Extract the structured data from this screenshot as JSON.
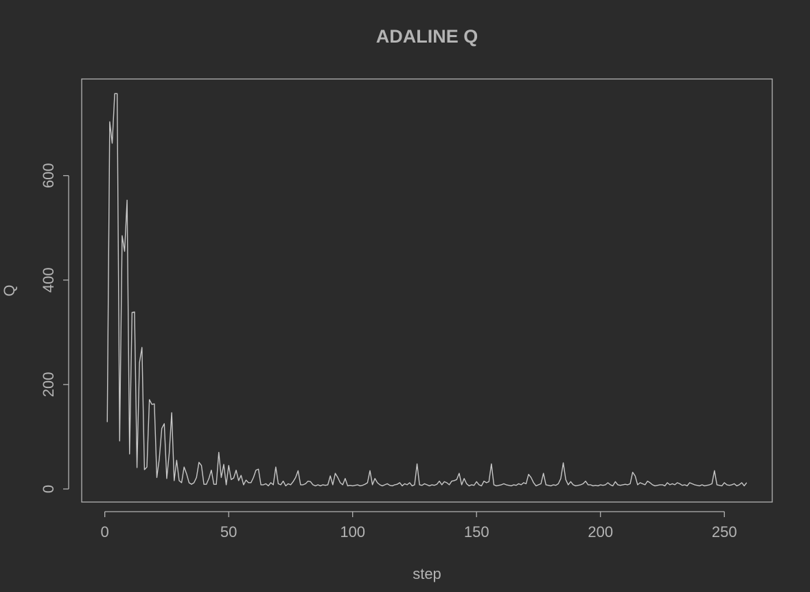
{
  "chart_data": {
    "type": "line",
    "title": "ADALINE Q",
    "xlabel": "step",
    "ylabel": "Q",
    "color": "#c8c8c8",
    "x": [
      1,
      2,
      3,
      4,
      5,
      6,
      7,
      8,
      9,
      10,
      11,
      12,
      13,
      14,
      15,
      16,
      17,
      18,
      19,
      20,
      21,
      22,
      23,
      24,
      25,
      26,
      27,
      28,
      29,
      30,
      31,
      32,
      33,
      34,
      35,
      36,
      37,
      38,
      39,
      40,
      41,
      42,
      43,
      44,
      45,
      46,
      47,
      48,
      49,
      50,
      51,
      52,
      53,
      54,
      55,
      56,
      57,
      58,
      59,
      60,
      61,
      62,
      63,
      64,
      65,
      66,
      67,
      68,
      69,
      70,
      71,
      72,
      73,
      74,
      75,
      76,
      77,
      78,
      79,
      80,
      81,
      82,
      83,
      84,
      85,
      86,
      87,
      88,
      89,
      90,
      91,
      92,
      93,
      94,
      95,
      96,
      97,
      98,
      99,
      100,
      101,
      102,
      103,
      104,
      105,
      106,
      107,
      108,
      109,
      110,
      111,
      112,
      113,
      114,
      115,
      116,
      117,
      118,
      119,
      120,
      121,
      122,
      123,
      124,
      125,
      126,
      127,
      128,
      129,
      130,
      131,
      132,
      133,
      134,
      135,
      136,
      137,
      138,
      139,
      140,
      141,
      142,
      143,
      144,
      145,
      146,
      147,
      148,
      149,
      150,
      151,
      152,
      153,
      154,
      155,
      156,
      157,
      158,
      159,
      160,
      161,
      162,
      163,
      164,
      165,
      166,
      167,
      168,
      169,
      170,
      171,
      172,
      173,
      174,
      175,
      176,
      177,
      178,
      179,
      180,
      181,
      182,
      183,
      184,
      185,
      186,
      187,
      188,
      189,
      190,
      191,
      192,
      193,
      194,
      195,
      196,
      197,
      198,
      199,
      200,
      201,
      202,
      203,
      204,
      205,
      206,
      207,
      208,
      209,
      210,
      211,
      212,
      213,
      214,
      215,
      216,
      217,
      218,
      219,
      220,
      221,
      222,
      223,
      224,
      225,
      226,
      227,
      228,
      229,
      230,
      231,
      232,
      233,
      234,
      235,
      236,
      237,
      238,
      239,
      240,
      241,
      242,
      243,
      244,
      245,
      246,
      247,
      248,
      249,
      250,
      251,
      252,
      253,
      254,
      255,
      256,
      257,
      258,
      259
    ],
    "values": [
      128,
      703,
      662,
      757,
      757,
      92,
      485,
      455,
      553,
      67,
      338,
      339,
      41,
      242,
      271,
      37,
      42,
      171,
      162,
      163,
      22,
      58,
      116,
      125,
      20,
      68,
      146,
      16,
      55,
      16,
      12,
      42,
      29,
      12,
      9,
      12,
      22,
      51,
      45,
      9,
      9,
      20,
      36,
      9,
      9,
      70,
      22,
      47,
      8,
      45,
      18,
      21,
      36,
      16,
      26,
      8,
      17,
      12,
      12,
      22,
      36,
      38,
      8,
      8,
      10,
      6,
      12,
      8,
      42,
      10,
      8,
      15,
      6,
      10,
      8,
      14,
      22,
      35,
      8,
      8,
      10,
      15,
      14,
      8,
      6,
      8,
      6,
      8,
      7,
      8,
      25,
      8,
      30,
      22,
      12,
      8,
      20,
      6,
      7,
      6,
      7,
      8,
      6,
      7,
      9,
      12,
      35,
      8,
      20,
      12,
      8,
      6,
      8,
      10,
      7,
      6,
      8,
      9,
      12,
      6,
      10,
      8,
      12,
      6,
      8,
      48,
      8,
      7,
      10,
      8,
      6,
      8,
      7,
      9,
      15,
      8,
      14,
      12,
      8,
      15,
      16,
      18,
      30,
      8,
      20,
      10,
      6,
      8,
      7,
      14,
      8,
      6,
      15,
      12,
      14,
      48,
      8,
      6,
      7,
      8,
      10,
      8,
      7,
      6,
      8,
      7,
      10,
      8,
      12,
      10,
      28,
      22,
      12,
      6,
      8,
      10,
      30,
      8,
      7,
      6,
      8,
      7,
      10,
      20,
      50,
      18,
      8,
      14,
      8,
      6,
      7,
      8,
      10,
      15,
      8,
      8,
      6,
      7,
      6,
      8,
      7,
      8,
      12,
      8,
      6,
      14,
      8,
      7,
      8,
      9,
      8,
      10,
      32,
      25,
      8,
      12,
      10,
      8,
      15,
      12,
      8,
      6,
      7,
      8,
      8,
      6,
      12,
      8,
      10,
      8,
      12,
      10,
      7,
      8,
      6,
      12,
      10,
      8,
      7,
      6,
      8,
      6,
      7,
      8,
      10,
      35,
      8,
      7,
      6,
      12,
      8,
      7,
      8,
      10,
      6,
      8,
      12,
      6,
      12
    ],
    "xlim": [
      -9.32,
      269.32
    ],
    "ylim": [
      -25,
      785
    ],
    "xticks": [
      0,
      50,
      100,
      150,
      200,
      250
    ],
    "yticks": [
      0,
      200,
      400,
      600
    ]
  }
}
